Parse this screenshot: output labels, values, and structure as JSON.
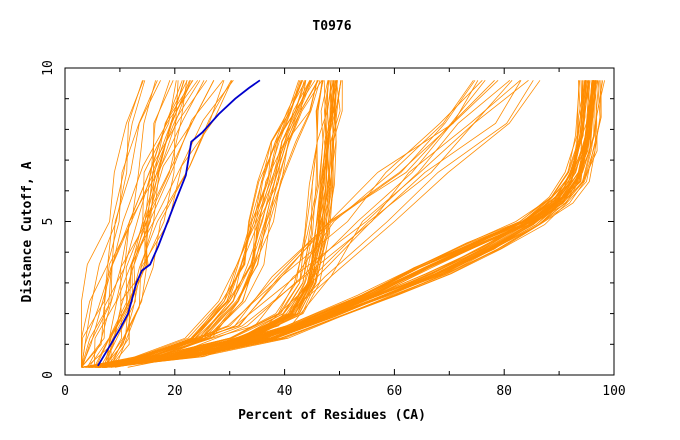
{
  "chart_data": {
    "type": "line",
    "title": "T0976",
    "xlabel": "Percent of Residues (CA)",
    "ylabel": "Distance Cutoff, A",
    "xlim": [
      0,
      100
    ],
    "ylim": [
      0,
      10
    ],
    "xticks": [
      "0",
      "20",
      "40",
      "60",
      "80",
      "100"
    ],
    "yticks": [
      "0",
      "5",
      "10"
    ],
    "grid": false,
    "colors": {
      "background_series": "#ff8c00",
      "highlight_series": "#0000cc"
    },
    "highlight": {
      "points": [
        [
          6,
          0.3
        ],
        [
          8,
          0.9
        ],
        [
          10,
          1.5
        ],
        [
          11.5,
          2.0
        ],
        [
          13,
          3.0
        ],
        [
          14,
          3.4
        ],
        [
          15.5,
          3.6
        ],
        [
          17,
          4.2
        ],
        [
          18.5,
          4.9
        ],
        [
          20,
          5.6
        ],
        [
          22,
          6.5
        ],
        [
          23,
          7.6
        ],
        [
          25,
          7.9
        ],
        [
          28,
          8.5
        ],
        [
          31,
          9.0
        ],
        [
          33.5,
          9.35
        ],
        [
          35.5,
          9.6
        ]
      ]
    },
    "background_groups": [
      {
        "count": 18,
        "points": [
          [
            3.5,
            0.25
          ],
          [
            6,
            1.2
          ],
          [
            8,
            2.4
          ],
          [
            10,
            3.6
          ],
          [
            12,
            5.0
          ],
          [
            14,
            6.6
          ],
          [
            16,
            8.2
          ],
          [
            18,
            9.6
          ]
        ],
        "spread": 10
      },
      {
        "count": 12,
        "points": [
          [
            4.5,
            0.25
          ],
          [
            7,
            1.0
          ],
          [
            9,
            2.2
          ],
          [
            11,
            3.5
          ],
          [
            14,
            5.0
          ],
          [
            18,
            6.8
          ],
          [
            22,
            8.3
          ],
          [
            26,
            9.6
          ]
        ],
        "spread": 8
      },
      {
        "count": 22,
        "points": [
          [
            5,
            0.25
          ],
          [
            14,
            0.5
          ],
          [
            25,
            1.2
          ],
          [
            31,
            2.4
          ],
          [
            34,
            3.6
          ],
          [
            36,
            5.0
          ],
          [
            38,
            6.3
          ],
          [
            40,
            7.6
          ],
          [
            43,
            8.6
          ],
          [
            45,
            9.6
          ]
        ],
        "spread": 5
      },
      {
        "count": 30,
        "points": [
          [
            6,
            0.25
          ],
          [
            18,
            0.6
          ],
          [
            32,
            1.2
          ],
          [
            41,
            2.0
          ],
          [
            44,
            3.0
          ],
          [
            46,
            4.6
          ],
          [
            47,
            6.2
          ],
          [
            47.5,
            7.6
          ],
          [
            48,
            8.6
          ],
          [
            48.5,
            9.6
          ]
        ],
        "spread": 4
      },
      {
        "count": 26,
        "points": [
          [
            6,
            0.25
          ],
          [
            22,
            0.6
          ],
          [
            38,
            1.2
          ],
          [
            48,
            1.9
          ],
          [
            58,
            2.6
          ],
          [
            68,
            3.3
          ],
          [
            77,
            4.1
          ],
          [
            85,
            4.9
          ],
          [
            90,
            5.6
          ],
          [
            93,
            6.3
          ],
          [
            94.5,
            7.3
          ],
          [
            95.5,
            8.4
          ],
          [
            96,
            9.6
          ]
        ],
        "spread": 4
      },
      {
        "count": 24,
        "points": [
          [
            6,
            0.25
          ],
          [
            25,
            0.7
          ],
          [
            42,
            1.6
          ],
          [
            55,
            2.6
          ],
          [
            65,
            3.5
          ],
          [
            75,
            4.3
          ],
          [
            84,
            5.0
          ],
          [
            90,
            5.8
          ],
          [
            93,
            6.6
          ],
          [
            94.5,
            7.8
          ],
          [
            95.5,
            9.6
          ]
        ],
        "spread": 3
      },
      {
        "count": 14,
        "points": [
          [
            6,
            0.25
          ],
          [
            20,
            0.6
          ],
          [
            35,
            1.6
          ],
          [
            45,
            3.2
          ],
          [
            55,
            5.0
          ],
          [
            65,
            6.6
          ],
          [
            75,
            8.2
          ],
          [
            82,
            9.6
          ]
        ],
        "spread": 14
      }
    ]
  }
}
